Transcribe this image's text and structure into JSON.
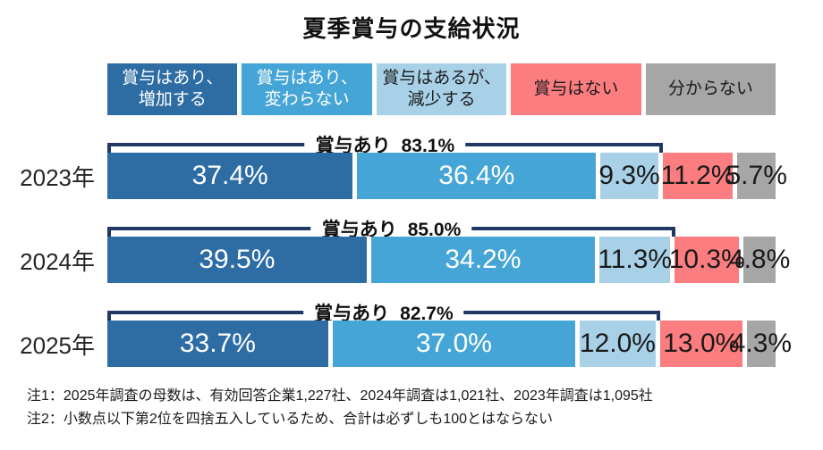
{
  "title": "夏季賞与の支給状況",
  "chart_data": {
    "type": "bar",
    "stacked": true,
    "orientation": "horizontal",
    "value_suffix": "%",
    "categories": [
      "2023年",
      "2024年",
      "2025年"
    ],
    "series": [
      {
        "name": "賞与はあり、\n増加する",
        "color": "#2E6DA4",
        "text_color": "#ffffff",
        "values": [
          37.4,
          39.5,
          33.7
        ]
      },
      {
        "name": "賞与はあり、\n変わらない",
        "color": "#45A5D6",
        "text_color": "#ffffff",
        "values": [
          36.4,
          34.2,
          37.0
        ]
      },
      {
        "name": "賞与はあるが、\n減少する",
        "color": "#A8D1E8",
        "text_color": "#1a1a1a",
        "values": [
          9.3,
          11.3,
          12.0
        ]
      },
      {
        "name": "賞与はない",
        "color": "#FC7D80",
        "text_color": "#1a1a1a",
        "values": [
          11.2,
          10.3,
          13.0
        ]
      },
      {
        "name": "分からない",
        "color": "#A6A6A6",
        "text_color": "#1a1a1a",
        "values": [
          5.7,
          4.8,
          4.3
        ]
      }
    ],
    "brackets": [
      {
        "label": "賞与あり",
        "value": "83.1%",
        "span_pct": 83.1
      },
      {
        "label": "賞与あり",
        "value": "85.0%",
        "span_pct": 85.0
      },
      {
        "label": "賞与あり",
        "value": "82.7%",
        "span_pct": 82.7
      }
    ],
    "legend_position": "top",
    "bracket_color": "#1F3864"
  },
  "notes": [
    "注1：2025年調査の母数は、有効回答企業1,227社、2024年調査は1,021社、2023年調査は1,095社",
    "注2：小数点以下第2位を四捨五入しているため、合計は必ずしも100とはならない"
  ]
}
